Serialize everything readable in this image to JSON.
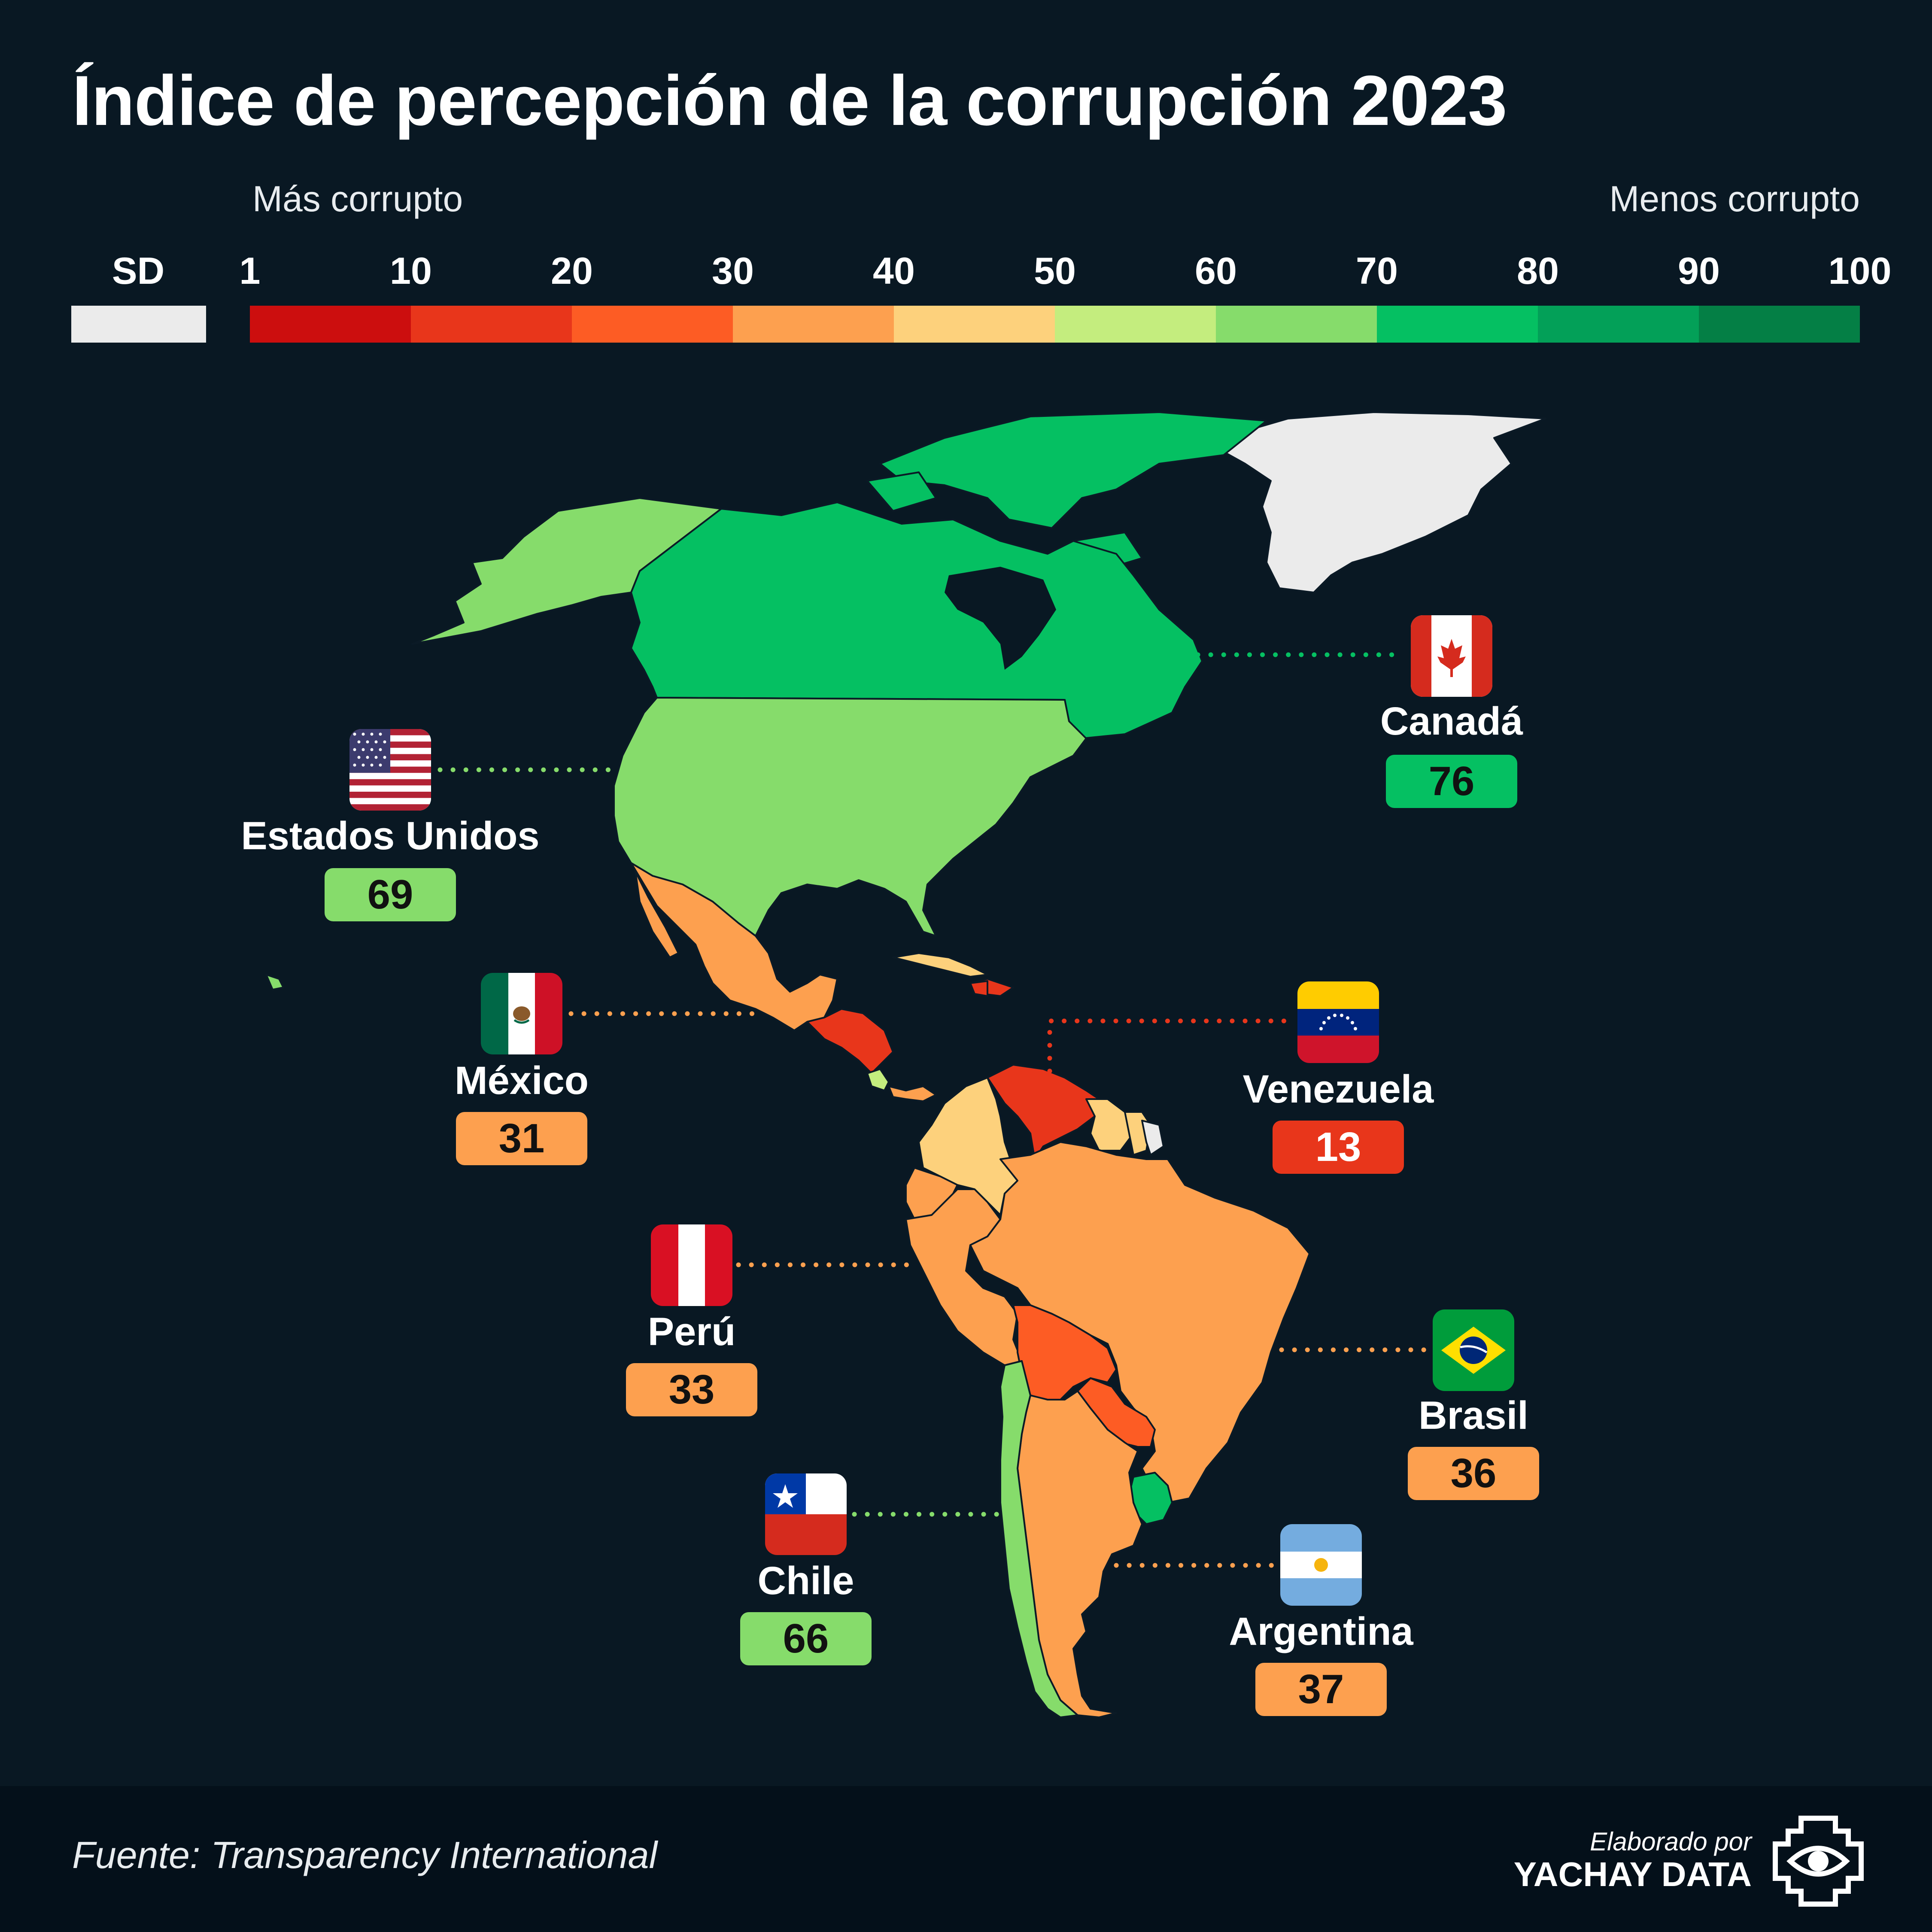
{
  "title": "Índice de percepción de la corrupción 2023",
  "legend": {
    "more_corrupt_label": "Más corrupto",
    "less_corrupt_label": "Menos corrupto",
    "no_data_label": "SD",
    "no_data_color": "#ebebeb",
    "ticks": [
      "1",
      "10",
      "20",
      "30",
      "40",
      "50",
      "60",
      "70",
      "80",
      "90",
      "100"
    ],
    "bin_colors": [
      "#cc0e0e",
      "#e8361b",
      "#fd5c24",
      "#fda04f",
      "#fdd17c",
      "#c4ed7e",
      "#86dc6b",
      "#05c062",
      "#03a058",
      "#047f45"
    ]
  },
  "countries": [
    {
      "name": "Canadá",
      "score": "76",
      "flag": "canada-flag",
      "color": "#05c062"
    },
    {
      "name": "Estados Unidos",
      "score": "69",
      "flag": "usa-flag",
      "color": "#86dc6b"
    },
    {
      "name": "México",
      "score": "31",
      "flag": "mexico-flag",
      "color": "#fda04f"
    },
    {
      "name": "Venezuela",
      "score": "13",
      "flag": "venezuela-flag",
      "color": "#e8361b"
    },
    {
      "name": "Perú",
      "score": "33",
      "flag": "peru-flag",
      "color": "#fda04f"
    },
    {
      "name": "Brasil",
      "score": "36",
      "flag": "brazil-flag",
      "color": "#fda04f"
    },
    {
      "name": "Chile",
      "score": "66",
      "flag": "chile-flag",
      "color": "#86dc6b"
    },
    {
      "name": "Argentina",
      "score": "37",
      "flag": "argentina-flag",
      "color": "#fda04f"
    }
  ],
  "map_colors": {
    "background": "#091823",
    "greenland": "#ebebeb",
    "colombia": "#fdd17c",
    "bolivia": "#fd5c24",
    "paraguay": "#fd5c24",
    "uruguay": "#05c062",
    "ecuador": "#fda04f",
    "guyana": "#fdd17c",
    "central_america": "#e8361b",
    "caribbean": "#fdd17c"
  },
  "footer": {
    "source": "Fuente: Transparency International",
    "credit_top": "Elaborado por",
    "credit_brand": "YACHAY DATA"
  }
}
